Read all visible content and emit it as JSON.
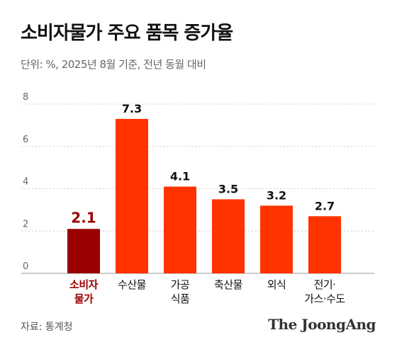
{
  "chart_data": {
    "type": "bar",
    "title": "소비자물가 주요 품목 증가율",
    "subtitle": "단위: %, 2025년 8월 기준, 전년 동월 대비",
    "categories": [
      [
        "소비자",
        "물가"
      ],
      [
        "수산물"
      ],
      [
        "가공",
        "식품"
      ],
      [
        "축산물"
      ],
      [
        "외식"
      ],
      [
        "전기·",
        "가스·수도"
      ]
    ],
    "values": [
      2.1,
      7.3,
      4.1,
      3.5,
      3.2,
      2.7
    ],
    "value_labels": [
      "2.1",
      "7.3",
      "4.1",
      "3.5",
      "3.2",
      "2.7"
    ],
    "yticks": [
      "0",
      "2",
      "4",
      "6",
      "8"
    ],
    "ylim": [
      0,
      8
    ],
    "grid": true,
    "highlight_index": 0,
    "colors": {
      "highlight": "#990000",
      "bar": "#ff3300",
      "highlight_text": "#990000",
      "text": "#111111",
      "tick": "#666666",
      "grid": "#cccccc"
    }
  },
  "footer": {
    "source": "자료: 통계청",
    "brand": "The JoongAng"
  }
}
